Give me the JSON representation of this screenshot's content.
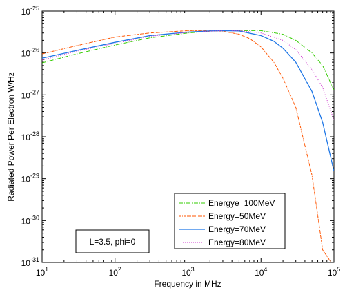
{
  "chart_data": {
    "type": "line",
    "xlabel": "Frequency in MHz",
    "ylabel": "Radiated Power Per Electron W/Hz",
    "xscale": "log",
    "yscale": "log",
    "xlim": [
      10,
      100000
    ],
    "ylim": [
      1e-31,
      1e-25
    ],
    "x_ticks": [
      {
        "value": 10,
        "base": "10",
        "exp": "1"
      },
      {
        "value": 100,
        "base": "10",
        "exp": "2"
      },
      {
        "value": 1000,
        "base": "10",
        "exp": "3"
      },
      {
        "value": 10000,
        "base": "10",
        "exp": "4"
      },
      {
        "value": 100000,
        "base": "10",
        "exp": "5"
      }
    ],
    "y_ticks": [
      {
        "value": 1e-25,
        "base": "10",
        "exp": "-25"
      },
      {
        "value": 1e-26,
        "base": "10",
        "exp": "-26"
      },
      {
        "value": 1e-27,
        "base": "10",
        "exp": "-27"
      },
      {
        "value": 1e-28,
        "base": "10",
        "exp": "-28"
      },
      {
        "value": 1e-29,
        "base": "10",
        "exp": "-29"
      },
      {
        "value": 1e-30,
        "base": "10",
        "exp": "-30"
      },
      {
        "value": 1e-31,
        "base": "10",
        "exp": "-31"
      }
    ],
    "grid": false,
    "legend_position": "bottom-right",
    "annotation": "L=3.5, phi=0",
    "series": [
      {
        "name": "Energye=100MeV",
        "color": "#33cc00",
        "dash": "6,2,1,2",
        "x": [
          10,
          30,
          100,
          300,
          1000,
          2000,
          3000,
          5000,
          10000,
          20000,
          30000,
          50000,
          70000,
          100000
        ],
        "y": [
          5.8e-27,
          9.5e-27,
          1.55e-26,
          2.3e-26,
          3e-26,
          3.3e-26,
          3.4e-26,
          3.4e-26,
          3.4e-26,
          2.8e-26,
          2e-26,
          1e-26,
          5e-27,
          1.3e-27
        ]
      },
      {
        "name": "Energy=50MeV",
        "color": "#ff5500",
        "dash": "4,1,1,1",
        "x": [
          10,
          30,
          100,
          300,
          1000,
          2000,
          3000,
          5000,
          7000,
          10000,
          15000,
          20000,
          30000,
          50000,
          70000,
          100000
        ],
        "y": [
          9.5e-27,
          1.5e-26,
          2.4e-26,
          3e-26,
          3.4e-26,
          3.4e-26,
          3.3e-26,
          2.8e-26,
          2.2e-26,
          1.4e-26,
          6e-27,
          2.5e-27,
          5e-28,
          1.2e-29,
          2e-31,
          8e-32
        ]
      },
      {
        "name": "Energy=70MeV",
        "color": "#1f77e6",
        "dash": "",
        "x": [
          10,
          30,
          100,
          300,
          1000,
          2000,
          3000,
          5000,
          10000,
          15000,
          20000,
          30000,
          50000,
          70000,
          100000
        ],
        "y": [
          7.5e-27,
          1.15e-26,
          1.8e-26,
          2.6e-26,
          3.15e-26,
          3.35e-26,
          3.4e-26,
          3.35e-26,
          2.6e-26,
          1.9e-26,
          1.3e-26,
          6e-27,
          1.2e-27,
          2.2e-28,
          1.5e-29
        ]
      },
      {
        "name": "Energy=80MeV",
        "color": "#cc33cc",
        "dash": "1,2",
        "x": [
          10,
          30,
          100,
          300,
          1000,
          2000,
          3000,
          5000,
          10000,
          20000,
          30000,
          50000,
          70000,
          100000
        ],
        "y": [
          6.8e-27,
          1.1e-26,
          1.7e-26,
          2.5e-26,
          3.1e-26,
          3.3e-26,
          3.4e-26,
          3.4e-26,
          3e-26,
          2e-26,
          1.2e-26,
          4e-27,
          1.5e-27,
          2.5e-28
        ]
      }
    ]
  }
}
